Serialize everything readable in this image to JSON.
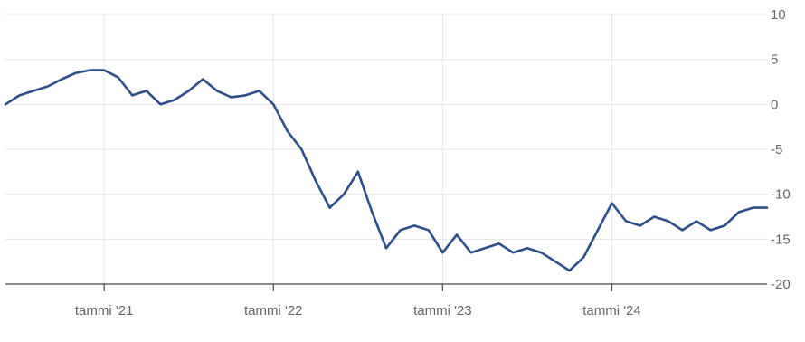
{
  "chart_data": {
    "type": "line",
    "title": "",
    "xlabel": "",
    "ylabel": "",
    "x_tick_labels": [
      "tammi '21",
      "tammi '22",
      "tammi '23",
      "tammi '24"
    ],
    "y_tick_labels": [
      "10",
      "5",
      "0",
      "-5",
      "-10",
      "-15",
      "-20"
    ],
    "ylim": [
      -20,
      10
    ],
    "xlim": [
      "2020-06",
      "2024-12"
    ],
    "grid": true,
    "series": [
      {
        "color": "#2f4f8a",
        "x": [
          "2020-06",
          "2020-07",
          "2020-08",
          "2020-09",
          "2020-10",
          "2020-11",
          "2020-12",
          "2021-01",
          "2021-02",
          "2021-03",
          "2021-04",
          "2021-05",
          "2021-06",
          "2021-07",
          "2021-08",
          "2021-09",
          "2021-10",
          "2021-11",
          "2021-12",
          "2022-01",
          "2022-02",
          "2022-03",
          "2022-04",
          "2022-05",
          "2022-06",
          "2022-07",
          "2022-08",
          "2022-09",
          "2022-10",
          "2022-11",
          "2022-12",
          "2023-01",
          "2023-02",
          "2023-03",
          "2023-04",
          "2023-05",
          "2023-06",
          "2023-07",
          "2023-08",
          "2023-09",
          "2023-10",
          "2023-11",
          "2023-12",
          "2024-01",
          "2024-02",
          "2024-03",
          "2024-04",
          "2024-05",
          "2024-06",
          "2024-07",
          "2024-08",
          "2024-09",
          "2024-10",
          "2024-11",
          "2024-12"
        ],
        "values": [
          0.0,
          1.0,
          1.5,
          2.0,
          2.8,
          3.5,
          3.8,
          3.8,
          3.0,
          1.0,
          1.5,
          0.0,
          0.5,
          1.5,
          2.8,
          1.5,
          0.8,
          1.0,
          1.5,
          0.0,
          -3.0,
          -5.0,
          -8.5,
          -11.5,
          -10.0,
          -7.5,
          -12.0,
          -16.0,
          -14.0,
          -13.5,
          -14.0,
          -16.5,
          -14.5,
          -16.5,
          -16.0,
          -15.5,
          -16.5,
          -16.0,
          -16.5,
          -17.5,
          -18.5,
          -17.0,
          -14.0,
          -11.0,
          -13.0,
          -13.5,
          -12.5,
          -13.0,
          -14.0,
          -13.0,
          -14.0,
          -13.5,
          -12.0,
          -11.5,
          -11.5
        ]
      }
    ]
  }
}
